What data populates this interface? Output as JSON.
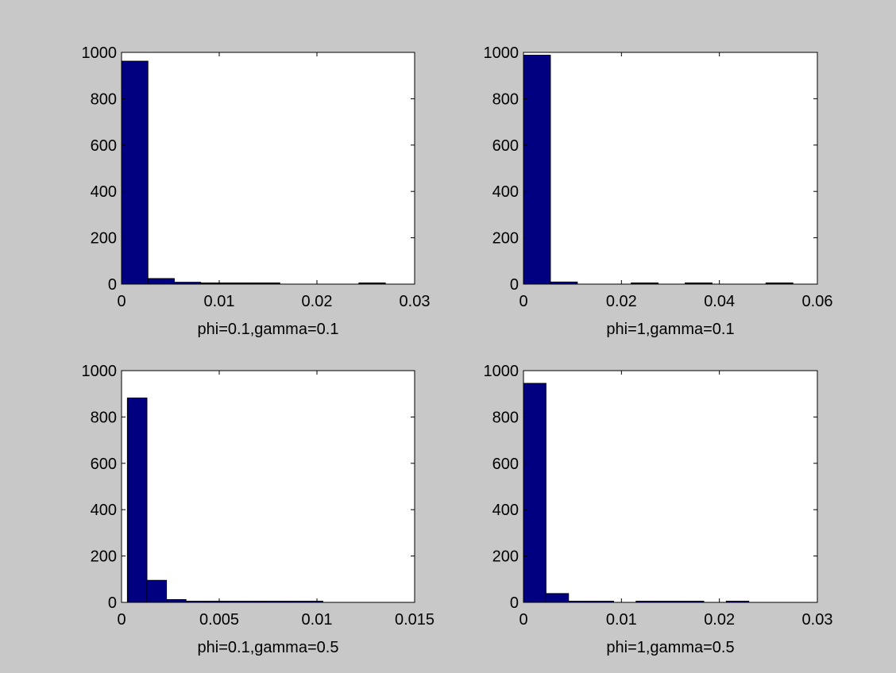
{
  "figure": {
    "background": "#c8c8c8",
    "bar_color": "#000080"
  },
  "chart_data": [
    {
      "type": "bar",
      "title": "",
      "xlabel": "phi=0.1,gamma=0.1",
      "ylabel": "",
      "xlim": [
        0,
        0.03
      ],
      "ylim": [
        0,
        1000
      ],
      "xticks": [
        "0",
        "0.01",
        "0.02",
        "0.03"
      ],
      "yticks": [
        "0",
        "200",
        "400",
        "600",
        "800",
        "1000"
      ],
      "bins": [
        {
          "x0": 0.0,
          "x1": 0.0027,
          "count": 962
        },
        {
          "x0": 0.0027,
          "x1": 0.0054,
          "count": 24
        },
        {
          "x0": 0.0054,
          "x1": 0.0081,
          "count": 8
        },
        {
          "x0": 0.0081,
          "x1": 0.0108,
          "count": 3
        },
        {
          "x0": 0.0108,
          "x1": 0.0135,
          "count": 1
        },
        {
          "x0": 0.0135,
          "x1": 0.0162,
          "count": 1
        },
        {
          "x0": 0.0162,
          "x1": 0.0189,
          "count": 0
        },
        {
          "x0": 0.0189,
          "x1": 0.0216,
          "count": 0
        },
        {
          "x0": 0.0216,
          "x1": 0.0243,
          "count": 0
        },
        {
          "x0": 0.0243,
          "x1": 0.027,
          "count": 1
        }
      ]
    },
    {
      "type": "bar",
      "title": "",
      "xlabel": "phi=1,gamma=0.1",
      "ylabel": "",
      "xlim": [
        0,
        0.06
      ],
      "ylim": [
        0,
        1000
      ],
      "xticks": [
        "0",
        "0.02",
        "0.04",
        "0.06"
      ],
      "yticks": [
        "0",
        "200",
        "400",
        "600",
        "800",
        "1000"
      ],
      "bins": [
        {
          "x0": 0.0,
          "x1": 0.0055,
          "count": 988
        },
        {
          "x0": 0.0055,
          "x1": 0.011,
          "count": 9
        },
        {
          "x0": 0.011,
          "x1": 0.0165,
          "count": 0
        },
        {
          "x0": 0.0165,
          "x1": 0.022,
          "count": 0
        },
        {
          "x0": 0.022,
          "x1": 0.0275,
          "count": 1
        },
        {
          "x0": 0.0275,
          "x1": 0.033,
          "count": 0
        },
        {
          "x0": 0.033,
          "x1": 0.0385,
          "count": 1
        },
        {
          "x0": 0.0385,
          "x1": 0.044,
          "count": 0
        },
        {
          "x0": 0.044,
          "x1": 0.0495,
          "count": 0
        },
        {
          "x0": 0.0495,
          "x1": 0.055,
          "count": 1
        }
      ]
    },
    {
      "type": "bar",
      "title": "",
      "xlabel": "phi=0.1,gamma=0.5",
      "ylabel": "",
      "xlim": [
        0,
        0.015
      ],
      "ylim": [
        0,
        1000
      ],
      "xticks": [
        "0",
        "0.005",
        "0.01",
        "0.015"
      ],
      "yticks": [
        "0",
        "200",
        "400",
        "600",
        "800",
        "1000"
      ],
      "bins": [
        {
          "x0": 0.0003,
          "x1": 0.0013,
          "count": 882
        },
        {
          "x0": 0.0013,
          "x1": 0.0023,
          "count": 95
        },
        {
          "x0": 0.0023,
          "x1": 0.0033,
          "count": 12
        },
        {
          "x0": 0.0033,
          "x1": 0.0043,
          "count": 3
        },
        {
          "x0": 0.0043,
          "x1": 0.0053,
          "count": 2
        },
        {
          "x0": 0.0053,
          "x1": 0.0063,
          "count": 1
        },
        {
          "x0": 0.0063,
          "x1": 0.0073,
          "count": 1
        },
        {
          "x0": 0.0073,
          "x1": 0.0083,
          "count": 1
        },
        {
          "x0": 0.0083,
          "x1": 0.0093,
          "count": 1
        },
        {
          "x0": 0.0093,
          "x1": 0.0103,
          "count": 2
        }
      ]
    },
    {
      "type": "bar",
      "title": "",
      "xlabel": "phi=1,gamma=0.5",
      "ylabel": "",
      "xlim": [
        0,
        0.03
      ],
      "ylim": [
        0,
        1000
      ],
      "xticks": [
        "0",
        "0.01",
        "0.02",
        "0.03"
      ],
      "yticks": [
        "0",
        "200",
        "400",
        "600",
        "800",
        "1000"
      ],
      "bins": [
        {
          "x0": 0.0,
          "x1": 0.0023,
          "count": 945
        },
        {
          "x0": 0.0023,
          "x1": 0.0046,
          "count": 38
        },
        {
          "x0": 0.0046,
          "x1": 0.0069,
          "count": 5
        },
        {
          "x0": 0.0069,
          "x1": 0.0092,
          "count": 3
        },
        {
          "x0": 0.0092,
          "x1": 0.0115,
          "count": 0
        },
        {
          "x0": 0.0115,
          "x1": 0.0138,
          "count": 2
        },
        {
          "x0": 0.0138,
          "x1": 0.0161,
          "count": 2
        },
        {
          "x0": 0.0161,
          "x1": 0.0184,
          "count": 2
        },
        {
          "x0": 0.0184,
          "x1": 0.0207,
          "count": 0
        },
        {
          "x0": 0.0207,
          "x1": 0.023,
          "count": 3
        }
      ]
    }
  ]
}
